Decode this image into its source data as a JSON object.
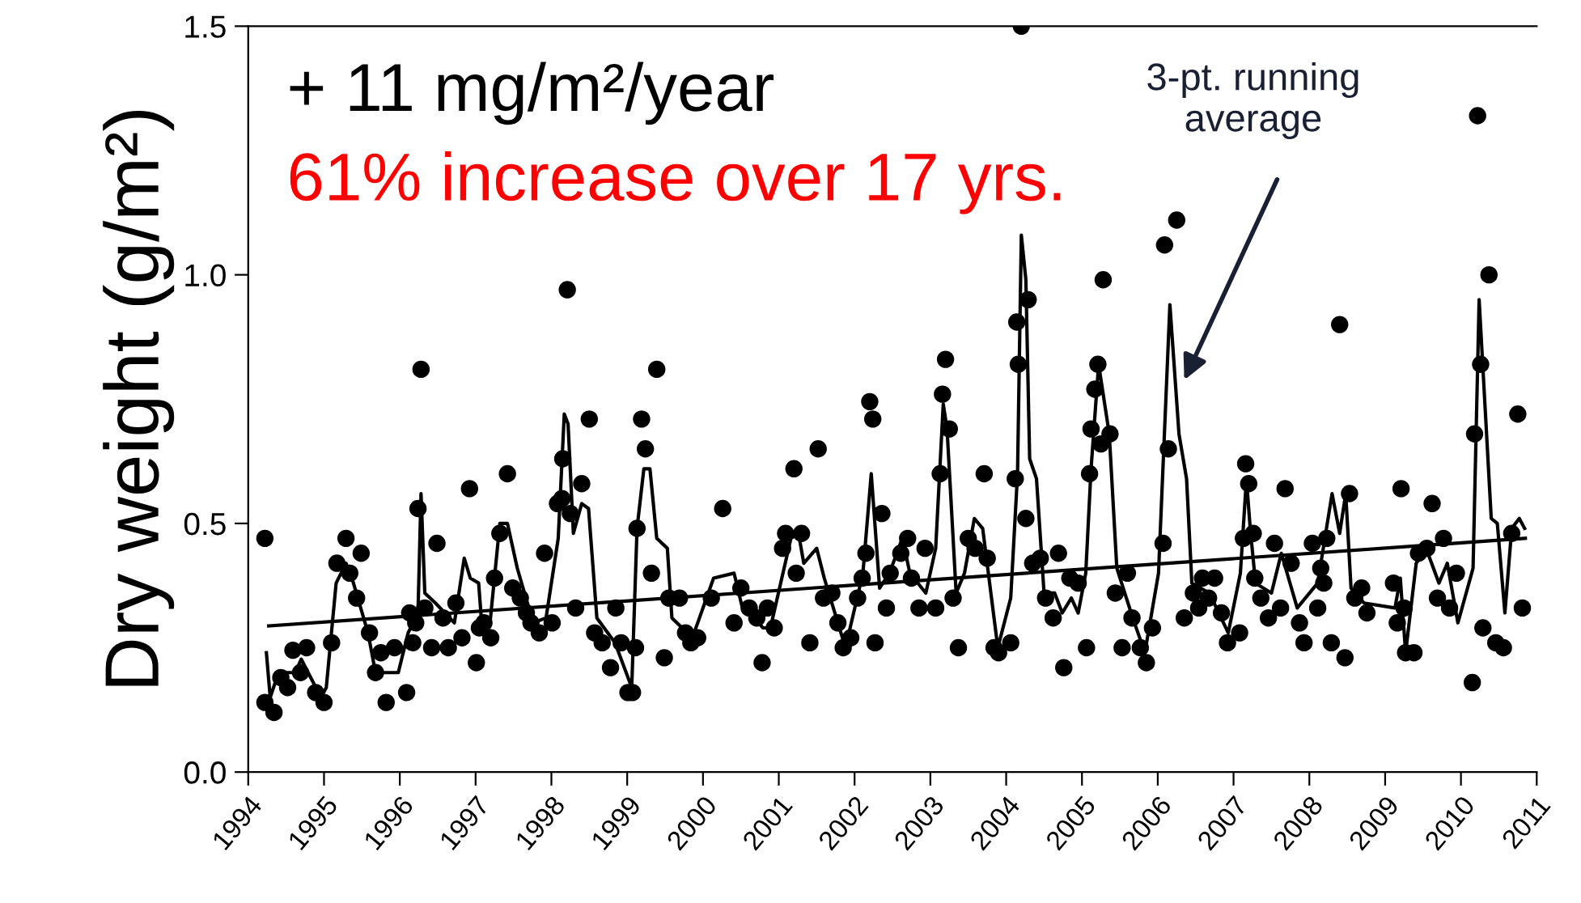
{
  "chart_data": {
    "type": "scatter",
    "ylabel": "Dry weight (g/m²)",
    "xlim": [
      1994,
      2011
    ],
    "xticks": [
      {
        "value": 1994,
        "label": "1994"
      },
      {
        "value": 1995,
        "label": "1995"
      },
      {
        "value": 1996,
        "label": "1996"
      },
      {
        "value": 1997,
        "label": "1997"
      },
      {
        "value": 1998,
        "label": "1998"
      },
      {
        "value": 1999,
        "label": "1999"
      },
      {
        "value": 2000,
        "label": "2000"
      },
      {
        "value": 2001,
        "label": "2001"
      },
      {
        "value": 2002,
        "label": "2002"
      },
      {
        "value": 2003,
        "label": "2003"
      },
      {
        "value": 2004,
        "label": "2004"
      },
      {
        "value": 2005,
        "label": "2005"
      },
      {
        "value": 2006,
        "label": "2006"
      },
      {
        "value": 2007,
        "label": "2007"
      },
      {
        "value": 2008,
        "label": "2008"
      },
      {
        "value": 2009,
        "label": "2009"
      },
      {
        "value": 2010,
        "label": "2010"
      },
      {
        "value": 2011,
        "label": "2011"
      }
    ],
    "ylim": [
      0,
      1.5
    ],
    "yticks": [
      {
        "value": 0,
        "label": "0.0"
      },
      {
        "value": 0.5,
        "label": "0.5"
      },
      {
        "value": 1,
        "label": "1.0"
      },
      {
        "value": 1.5,
        "label": "1.5"
      }
    ],
    "grid": false,
    "legend": false,
    "series": [
      {
        "marker": "circle",
        "color": "#000000",
        "x": [
          1994.22,
          1994.22,
          1994.34,
          1994.43,
          1994.52,
          1994.59,
          1994.69,
          1994.77,
          1994.89,
          1995.0,
          1995.1,
          1995.17,
          1995.29,
          1995.34,
          1995.43,
          1995.49,
          1995.6,
          1995.68,
          1995.75,
          1995.82,
          1995.93,
          1996.09,
          1996.13,
          1996.17,
          1996.21,
          1996.24,
          1996.28,
          1996.33,
          1996.42,
          1996.49,
          1996.57,
          1996.64,
          1996.74,
          1996.82,
          1996.92,
          1997.01,
          1997.05,
          1997.11,
          1997.2,
          1997.25,
          1997.32,
          1997.42,
          1997.49,
          1997.59,
          1997.67,
          1997.73,
          1997.84,
          1997.91,
          1998.01,
          1998.08,
          1998.14,
          1998.15,
          1998.21,
          1998.25,
          1998.32,
          1998.4,
          1998.5,
          1998.57,
          1998.67,
          1998.78,
          1998.85,
          1998.92,
          1999.01,
          1999.07,
          1999.11,
          1999.13,
          1999.19,
          1999.24,
          1999.32,
          1999.39,
          1999.49,
          1999.55,
          1999.69,
          1999.77,
          1999.84,
          1999.93,
          2000.11,
          2000.26,
          2000.41,
          2000.5,
          2000.61,
          2000.71,
          2000.78,
          2000.85,
          2000.94,
          2001.05,
          2001.09,
          2001.2,
          2001.23,
          2001.3,
          2001.41,
          2001.52,
          2001.59,
          2001.7,
          2001.78,
          2001.85,
          2001.95,
          2002.04,
          2002.1,
          2002.15,
          2002.2,
          2002.24,
          2002.27,
          2002.36,
          2002.42,
          2002.47,
          2002.61,
          2002.7,
          2002.75,
          2002.85,
          2002.93,
          2003.07,
          2003.13,
          2003.16,
          2003.2,
          2003.25,
          2003.3,
          2003.37,
          2003.5,
          2003.59,
          2003.71,
          2003.75,
          2003.84,
          2003.9,
          2004.06,
          2004.12,
          2004.14,
          2004.16,
          2004.2,
          2004.26,
          2004.29,
          2004.35,
          2004.45,
          2004.52,
          2004.62,
          2004.69,
          2004.76,
          2004.84,
          2004.95,
          2005.06,
          2005.1,
          2005.12,
          2005.17,
          2005.21,
          2005.25,
          2005.28,
          2005.37,
          2005.44,
          2005.53,
          2005.6,
          2005.66,
          2005.77,
          2005.85,
          2005.93,
          2006.07,
          2006.09,
          2006.14,
          2006.25,
          2006.35,
          2006.47,
          2006.54,
          2006.59,
          2006.67,
          2006.75,
          2006.84,
          2006.92,
          2007.08,
          2007.13,
          2007.16,
          2007.2,
          2007.26,
          2007.28,
          2007.36,
          2007.46,
          2007.54,
          2007.62,
          2007.68,
          2007.76,
          2007.87,
          2007.93,
          2008.04,
          2008.11,
          2008.15,
          2008.19,
          2008.23,
          2008.29,
          2008.4,
          2008.47,
          2008.53,
          2008.6,
          2008.69,
          2008.76,
          2009.11,
          2009.16,
          2009.21,
          2009.25,
          2009.27,
          2009.38,
          2009.44,
          2009.55,
          2009.62,
          2009.69,
          2009.77,
          2009.85,
          2009.94,
          2010.15,
          2010.18,
          2010.22,
          2010.26,
          2010.29,
          2010.37,
          2010.46,
          2010.56,
          2010.67,
          2010.75,
          2010.81
        ],
        "values": [
          0.47,
          0.14,
          0.12,
          0.19,
          0.17,
          0.245,
          0.2,
          0.25,
          0.16,
          0.14,
          0.26,
          0.42,
          0.47,
          0.4,
          0.35,
          0.44,
          0.28,
          0.2,
          0.24,
          0.14,
          0.25,
          0.16,
          0.32,
          0.26,
          0.3,
          0.53,
          0.81,
          0.33,
          0.25,
          0.46,
          0.31,
          0.25,
          0.34,
          0.27,
          0.57,
          0.22,
          0.29,
          0.3,
          0.27,
          0.39,
          0.48,
          0.6,
          0.37,
          0.35,
          0.32,
          0.3,
          0.28,
          0.44,
          0.3,
          0.54,
          0.55,
          0.63,
          0.97,
          0.52,
          0.33,
          0.58,
          0.71,
          0.28,
          0.26,
          0.21,
          0.33,
          0.26,
          0.16,
          0.16,
          0.25,
          0.49,
          0.71,
          0.65,
          0.4,
          0.81,
          0.23,
          0.35,
          0.35,
          0.28,
          0.26,
          0.27,
          0.35,
          0.53,
          0.3,
          0.37,
          0.33,
          0.31,
          0.22,
          0.33,
          0.29,
          0.45,
          0.48,
          0.61,
          0.4,
          0.48,
          0.26,
          0.65,
          0.35,
          0.36,
          0.3,
          0.25,
          0.27,
          0.35,
          0.39,
          0.44,
          0.745,
          0.71,
          0.26,
          0.52,
          0.33,
          0.4,
          0.44,
          0.47,
          0.39,
          0.33,
          0.45,
          0.33,
          0.6,
          0.76,
          0.83,
          0.69,
          0.35,
          0.25,
          0.47,
          0.45,
          0.6,
          0.43,
          0.25,
          0.24,
          0.26,
          0.59,
          0.905,
          0.82,
          1.5,
          0.51,
          0.95,
          0.42,
          0.43,
          0.35,
          0.31,
          0.44,
          0.21,
          0.39,
          0.38,
          0.25,
          0.6,
          0.69,
          0.77,
          0.82,
          0.66,
          0.99,
          0.68,
          0.36,
          0.25,
          0.4,
          0.31,
          0.25,
          0.22,
          0.29,
          0.46,
          1.06,
          0.65,
          1.11,
          0.31,
          0.36,
          0.33,
          0.39,
          0.35,
          0.39,
          0.32,
          0.26,
          0.28,
          0.47,
          0.62,
          0.58,
          0.48,
          0.39,
          0.35,
          0.31,
          0.46,
          0.33,
          0.57,
          0.42,
          0.3,
          0.26,
          0.46,
          0.33,
          0.41,
          0.38,
          0.47,
          0.26,
          0.9,
          0.23,
          0.56,
          0.35,
          0.37,
          0.32,
          0.38,
          0.3,
          0.57,
          0.33,
          0.24,
          0.24,
          0.44,
          0.45,
          0.54,
          0.35,
          0.47,
          0.33,
          0.4,
          0.18,
          0.68,
          1.32,
          0.82,
          0.29,
          1.0,
          0.26,
          0.25,
          0.48,
          0.72,
          0.33
        ]
      },
      {
        "type": "line",
        "marker": "none",
        "line_style": "solid",
        "color": "#000000",
        "x": [
          1994.24,
          1994.29,
          1994.4,
          1994.62,
          1994.7,
          1994.96,
          1995.03,
          1995.16,
          1995.29,
          1995.35,
          1995.58,
          1995.68,
          1995.81,
          1995.98,
          1996.11,
          1996.24,
          1996.28,
          1996.33,
          1996.47,
          1996.72,
          1996.85,
          1996.93,
          1997.04,
          1997.08,
          1997.19,
          1997.32,
          1997.42,
          1997.55,
          1997.76,
          1997.93,
          1998.09,
          1998.17,
          1998.22,
          1998.29,
          1998.4,
          1998.49,
          1998.6,
          1998.84,
          1999.06,
          1999.13,
          1999.22,
          1999.3,
          1999.39,
          1999.53,
          1999.59,
          1999.86,
          2000.14,
          2000.41,
          2000.52,
          2000.68,
          2000.79,
          2000.89,
          2001.16,
          2001.26,
          2001.33,
          2001.5,
          2001.6,
          2001.88,
          2002.11,
          2002.22,
          2002.33,
          2002.46,
          2002.63,
          2002.73,
          2002.94,
          2003.07,
          2003.17,
          2003.22,
          2003.34,
          2003.45,
          2003.58,
          2003.69,
          2003.89,
          2004.06,
          2004.15,
          2004.2,
          2004.26,
          2004.31,
          2004.4,
          2004.5,
          2004.64,
          2004.74,
          2004.86,
          2004.95,
          2005.05,
          2005.12,
          2005.22,
          2005.36,
          2005.46,
          2005.67,
          2005.83,
          2006.01,
          2006.16,
          2006.28,
          2006.38,
          2006.45,
          2006.68,
          2006.93,
          2007.09,
          2007.17,
          2007.22,
          2007.29,
          2007.5,
          2007.63,
          2007.84,
          2008.11,
          2008.3,
          2008.4,
          2008.48,
          2008.55,
          2008.72,
          2009.13,
          2009.2,
          2009.27,
          2009.41,
          2009.54,
          2009.71,
          2009.82,
          2009.96,
          2010.16,
          2010.24,
          2010.4,
          2010.48,
          2010.58,
          2010.67,
          2010.77,
          2010.84
        ],
        "values": [
          0.24,
          0.15,
          0.2,
          0.2,
          0.227,
          0.15,
          0.17,
          0.38,
          0.42,
          0.4,
          0.28,
          0.2,
          0.2,
          0.2,
          0.28,
          0.32,
          0.56,
          0.36,
          0.34,
          0.3,
          0.43,
          0.39,
          0.38,
          0.3,
          0.3,
          0.5,
          0.5,
          0.41,
          0.3,
          0.31,
          0.47,
          0.72,
          0.7,
          0.48,
          0.54,
          0.53,
          0.31,
          0.26,
          0.17,
          0.49,
          0.61,
          0.61,
          0.47,
          0.45,
          0.31,
          0.27,
          0.39,
          0.4,
          0.33,
          0.31,
          0.29,
          0.29,
          0.47,
          0.48,
          0.42,
          0.45,
          0.39,
          0.25,
          0.4,
          0.6,
          0.37,
          0.4,
          0.47,
          0.4,
          0.36,
          0.45,
          0.74,
          0.69,
          0.36,
          0.4,
          0.51,
          0.49,
          0.25,
          0.35,
          0.6,
          1.08,
          0.99,
          0.63,
          0.59,
          0.36,
          0.36,
          0.32,
          0.35,
          0.32,
          0.4,
          0.61,
          0.82,
          0.68,
          0.41,
          0.31,
          0.24,
          0.4,
          0.94,
          0.68,
          0.59,
          0.38,
          0.36,
          0.28,
          0.4,
          0.59,
          0.49,
          0.38,
          0.36,
          0.44,
          0.33,
          0.38,
          0.56,
          0.48,
          0.56,
          0.37,
          0.34,
          0.33,
          0.39,
          0.24,
          0.42,
          0.45,
          0.38,
          0.42,
          0.3,
          0.41,
          0.95,
          0.51,
          0.5,
          0.32,
          0.49,
          0.51,
          0.49
        ]
      },
      {
        "type": "line",
        "marker": "none",
        "line_style": "solid",
        "color": "#000000",
        "x": [
          1994.27,
          2010.85
        ],
        "values": [
          0.294,
          0.47
        ]
      }
    ],
    "annotations": [
      "+ 11 mg/m²/year",
      "61% increase over 17 yrs.",
      "3-pt. running\naverage"
    ]
  }
}
